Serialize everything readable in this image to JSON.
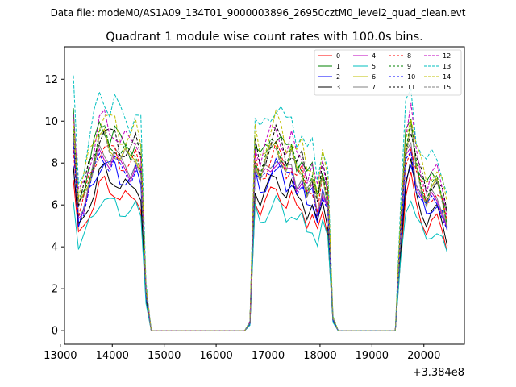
{
  "chart_data": {
    "type": "line",
    "suptitle": "Data file: modeM0/AS1A09_134T01_9000003896_26950cztM0_level2_quad_clean.evt",
    "title": "Quadrant 1 module wise count rates with 100.0s bins.",
    "xlabel": "",
    "ylabel": "",
    "x_offset_label": "+3.384e8",
    "xlim": [
      13080,
      20780
    ],
    "ylim": [
      -0.65,
      13.55
    ],
    "xticks": [
      13000,
      14000,
      15000,
      16000,
      17000,
      18000,
      19000,
      20000
    ],
    "yticks": [
      0,
      2,
      4,
      6,
      8,
      10,
      12
    ],
    "grid": false,
    "legend_position": "top-right",
    "base_profile": {
      "x": [
        13250,
        13350,
        13450,
        13550,
        13650,
        13750,
        13850,
        13950,
        14050,
        14150,
        14250,
        14350,
        14450,
        14550,
        14650,
        14750,
        14850,
        14950,
        15050,
        15150,
        15250,
        15350,
        15450,
        15550,
        15650,
        15750,
        15850,
        15950,
        16050,
        16150,
        16250,
        16350,
        16450,
        16550,
        16650,
        16750,
        16850,
        16950,
        17050,
        17150,
        17250,
        17350,
        17450,
        17550,
        17650,
        17750,
        17850,
        17950,
        18050,
        18150,
        18250,
        18350,
        18450,
        18550,
        18650,
        18750,
        18850,
        18950,
        19050,
        19150,
        19250,
        19350,
        19450,
        19550,
        19650,
        19750,
        19850,
        19950,
        20050,
        20150,
        20250,
        20350,
        20450
      ],
      "y": [
        1.0,
        0.62,
        0.68,
        0.78,
        0.86,
        0.96,
        0.97,
        0.92,
        0.94,
        0.88,
        0.88,
        0.86,
        0.9,
        0.84,
        0.2,
        0,
        0,
        0,
        0,
        0,
        0,
        0,
        0,
        0,
        0,
        0,
        0,
        0,
        0,
        0,
        0,
        0,
        0,
        0,
        0.04,
        0.88,
        0.8,
        0.85,
        0.9,
        0.94,
        0.9,
        0.83,
        0.88,
        0.8,
        0.82,
        0.72,
        0.76,
        0.64,
        0.78,
        0.66,
        0.06,
        0,
        0,
        0,
        0,
        0,
        0,
        0,
        0,
        0,
        0,
        0,
        0,
        0.5,
        0.9,
        1.0,
        0.82,
        0.74,
        0.67,
        0.72,
        0.73,
        0.66,
        0.55
      ]
    },
    "series": [
      {
        "name": "0",
        "color": "#ff0000",
        "dash": "solid",
        "level": 7.2
      },
      {
        "name": "1",
        "color": "#008000",
        "dash": "solid",
        "level": 10.1
      },
      {
        "name": "2",
        "color": "#0000ff",
        "dash": "solid",
        "level": 8.3
      },
      {
        "name": "3",
        "color": "#000000",
        "dash": "solid",
        "level": 7.8
      },
      {
        "name": "4",
        "color": "#bf00bf",
        "dash": "solid",
        "level": 8.8
      },
      {
        "name": "5",
        "color": "#00bfbf",
        "dash": "solid",
        "level": 6.5
      },
      {
        "name": "6",
        "color": "#bfbf00",
        "dash": "solid",
        "level": 9.4
      },
      {
        "name": "7",
        "color": "#808080",
        "dash": "solid",
        "level": 9.0
      },
      {
        "name": "8",
        "color": "#ff0000",
        "dash": "dashed",
        "level": 9.1
      },
      {
        "name": "9",
        "color": "#008000",
        "dash": "dashed",
        "level": 9.6
      },
      {
        "name": "10",
        "color": "#0000ff",
        "dash": "dashed",
        "level": 8.6
      },
      {
        "name": "11",
        "color": "#000000",
        "dash": "dashed",
        "level": 9.9
      },
      {
        "name": "12",
        "color": "#bf00bf",
        "dash": "dashed",
        "level": 10.3
      },
      {
        "name": "13",
        "color": "#00bfbf",
        "dash": "dashed",
        "level": 11.6
      },
      {
        "name": "14",
        "color": "#bfbf00",
        "dash": "dashed",
        "level": 10.6
      },
      {
        "name": "15",
        "color": "#808080",
        "dash": "dashed",
        "level": 9.3
      }
    ]
  }
}
